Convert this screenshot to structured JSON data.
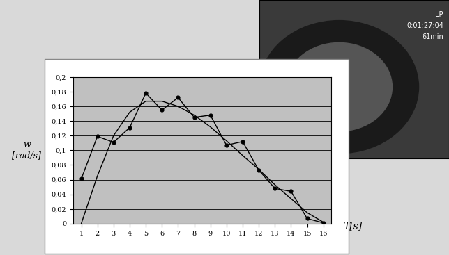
{
  "chart_data": {
    "type": "line",
    "ylabel": "w\n[rad/s]",
    "xlabel": "T[s]",
    "x": [
      1,
      2,
      3,
      4,
      5,
      6,
      7,
      8,
      9,
      10,
      11,
      12,
      13,
      14,
      15,
      16
    ],
    "series": [
      {
        "name": null,
        "type": "line",
        "color": "#000000",
        "marker": "o",
        "line_style": "solid",
        "values": [
          0.061,
          0.119,
          0.111,
          0.131,
          0.178,
          0.155,
          0.172,
          0.145,
          0.148,
          0.107,
          0.112,
          0.073,
          0.048,
          0.044,
          0.007,
          0.001
        ]
      },
      {
        "name": null,
        "type": "line",
        "color": "#000000",
        "marker": "none",
        "line_style": "solid",
        "values": [
          0.0,
          0.065,
          0.12,
          0.152,
          0.167,
          0.167,
          0.16,
          0.148,
          0.132,
          0.113,
          0.093,
          0.074,
          0.053,
          0.034,
          0.015,
          0.002
        ]
      }
    ],
    "xlim": [
      0.5,
      16.5
    ],
    "xticks": [
      1,
      2,
      3,
      4,
      5,
      6,
      7,
      8,
      9,
      10,
      11,
      12,
      13,
      14,
      15,
      16
    ],
    "ylim": [
      0,
      0.2
    ],
    "yticks": [
      0,
      {
        "value": 0.02,
        "label": "0,02"
      },
      {
        "value": 0.04,
        "label": "0,04"
      },
      {
        "value": 0.06,
        "label": "0,06"
      },
      {
        "value": 0.08,
        "label": "0,08"
      },
      {
        "value": 0.1,
        "label": "0,1"
      },
      {
        "value": 0.12,
        "label": "0,12"
      },
      {
        "value": 0.14,
        "label": "0,14"
      },
      {
        "value": 0.16,
        "label": "0,16"
      },
      {
        "value": 0.18,
        "label": "0,18"
      },
      {
        "value": 0.2,
        "label": "0,2"
      }
    ],
    "grid": true,
    "annotations": [
      "LP",
      "0:01:27:04",
      "61min"
    ]
  }
}
